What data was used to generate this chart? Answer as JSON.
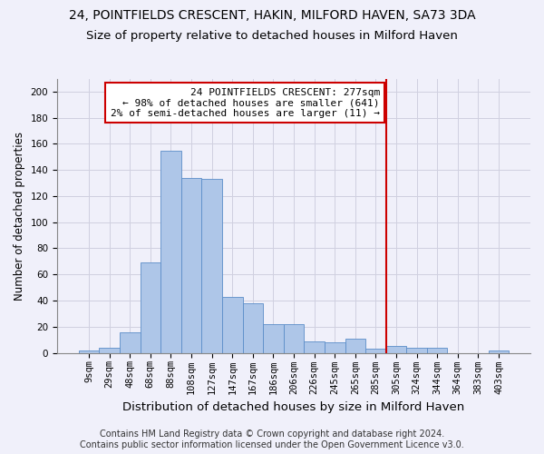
{
  "title": "24, POINTFIELDS CRESCENT, HAKIN, MILFORD HAVEN, SA73 3DA",
  "subtitle": "Size of property relative to detached houses in Milford Haven",
  "xlabel": "Distribution of detached houses by size in Milford Haven",
  "ylabel": "Number of detached properties",
  "footer_line1": "Contains HM Land Registry data © Crown copyright and database right 2024.",
  "footer_line2": "Contains public sector information licensed under the Open Government Licence v3.0.",
  "bin_labels": [
    "9sqm",
    "29sqm",
    "48sqm",
    "68sqm",
    "88sqm",
    "108sqm",
    "127sqm",
    "147sqm",
    "167sqm",
    "186sqm",
    "206sqm",
    "226sqm",
    "245sqm",
    "265sqm",
    "285sqm",
    "305sqm",
    "324sqm",
    "344sqm",
    "364sqm",
    "383sqm",
    "403sqm"
  ],
  "bar_values": [
    2,
    4,
    16,
    69,
    155,
    134,
    133,
    43,
    38,
    22,
    22,
    9,
    8,
    11,
    3,
    5,
    4,
    4,
    0,
    0,
    2
  ],
  "bar_color": "#aec6e8",
  "bar_edge_color": "#5b8dc8",
  "grid_color": "#d0d0e0",
  "vline_x_index": 14,
  "vline_color": "#cc0000",
  "annotation_text": "24 POINTFIELDS CRESCENT: 277sqm\n← 98% of detached houses are smaller (641)\n2% of semi-detached houses are larger (11) →",
  "annotation_box_color": "#cc0000",
  "ylim": [
    0,
    210
  ],
  "yticks": [
    0,
    20,
    40,
    60,
    80,
    100,
    120,
    140,
    160,
    180,
    200
  ],
  "background_color": "#f0f0fa",
  "title_fontsize": 10,
  "subtitle_fontsize": 9.5,
  "xlabel_fontsize": 9.5,
  "ylabel_fontsize": 8.5,
  "tick_fontsize": 7.5,
  "annotation_fontsize": 8,
  "footer_fontsize": 7
}
